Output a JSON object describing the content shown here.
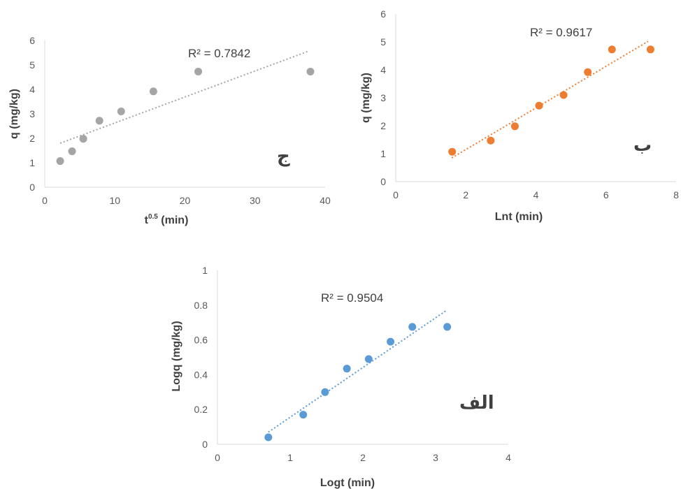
{
  "chart_data": [
    {
      "type": "scatter",
      "panel_label": "ج",
      "xlabel_main": "t",
      "xlabel_sup": "0.5",
      "xlabel_rest": " (min)",
      "ylabel": "q (mg/kg)",
      "xlim": [
        0,
        40
      ],
      "ylim": [
        0,
        6
      ],
      "xticks": [
        0,
        10,
        20,
        30,
        40
      ],
      "yticks": [
        0,
        1,
        2,
        3,
        4,
        5,
        6
      ],
      "grid": false,
      "color": "#a5a5a5",
      "points": [
        {
          "x": 2.2,
          "y": 1.07
        },
        {
          "x": 3.9,
          "y": 1.47
        },
        {
          "x": 5.5,
          "y": 1.98
        },
        {
          "x": 7.8,
          "y": 2.72
        },
        {
          "x": 10.9,
          "y": 3.1
        },
        {
          "x": 15.5,
          "y": 3.92
        },
        {
          "x": 21.9,
          "y": 4.73
        },
        {
          "x": 37.9,
          "y": 4.73
        }
      ],
      "trendline": {
        "x1": 2.2,
        "y1": 1.8,
        "x2": 37.5,
        "y2": 5.55
      },
      "r2_text": "R² = 0.7842"
    },
    {
      "type": "scatter",
      "panel_label": "ب",
      "xlabel": "Lnt (min)",
      "ylabel": "q (mg/kg)",
      "xlim": [
        0,
        8
      ],
      "ylim": [
        0,
        6
      ],
      "xticks": [
        0,
        2,
        4,
        6,
        8
      ],
      "yticks": [
        0,
        1,
        2,
        3,
        4,
        5,
        6
      ],
      "grid": false,
      "color": "#ed7d31",
      "points": [
        {
          "x": 1.61,
          "y": 1.07
        },
        {
          "x": 2.71,
          "y": 1.47
        },
        {
          "x": 3.4,
          "y": 1.98
        },
        {
          "x": 4.09,
          "y": 2.72
        },
        {
          "x": 4.79,
          "y": 3.1
        },
        {
          "x": 5.48,
          "y": 3.92
        },
        {
          "x": 6.17,
          "y": 4.73
        },
        {
          "x": 7.27,
          "y": 4.73
        }
      ],
      "trendline": {
        "x1": 1.6,
        "y1": 0.85,
        "x2": 7.2,
        "y2": 5.02
      },
      "r2_text": "R² = 0.9617"
    },
    {
      "type": "scatter",
      "panel_label": "الف",
      "xlabel": "Logt (min)",
      "ylabel": "Logq (mg/kg)",
      "xlim": [
        0,
        4
      ],
      "ylim": [
        0,
        1
      ],
      "xticks": [
        0,
        1,
        2,
        3,
        4
      ],
      "yticks": [
        0,
        0.2,
        0.4,
        0.6,
        0.8,
        1
      ],
      "grid": false,
      "color": "#5b9bd5",
      "points": [
        {
          "x": 0.7,
          "y": 0.04
        },
        {
          "x": 1.18,
          "y": 0.17
        },
        {
          "x": 1.48,
          "y": 0.3
        },
        {
          "x": 1.78,
          "y": 0.435
        },
        {
          "x": 2.08,
          "y": 0.49
        },
        {
          "x": 2.38,
          "y": 0.59
        },
        {
          "x": 2.68,
          "y": 0.675
        },
        {
          "x": 3.16,
          "y": 0.675
        }
      ],
      "trendline": {
        "x1": 0.7,
        "y1": 0.07,
        "x2": 3.15,
        "y2": 0.77
      },
      "r2_text": "R² = 0.9504"
    }
  ]
}
